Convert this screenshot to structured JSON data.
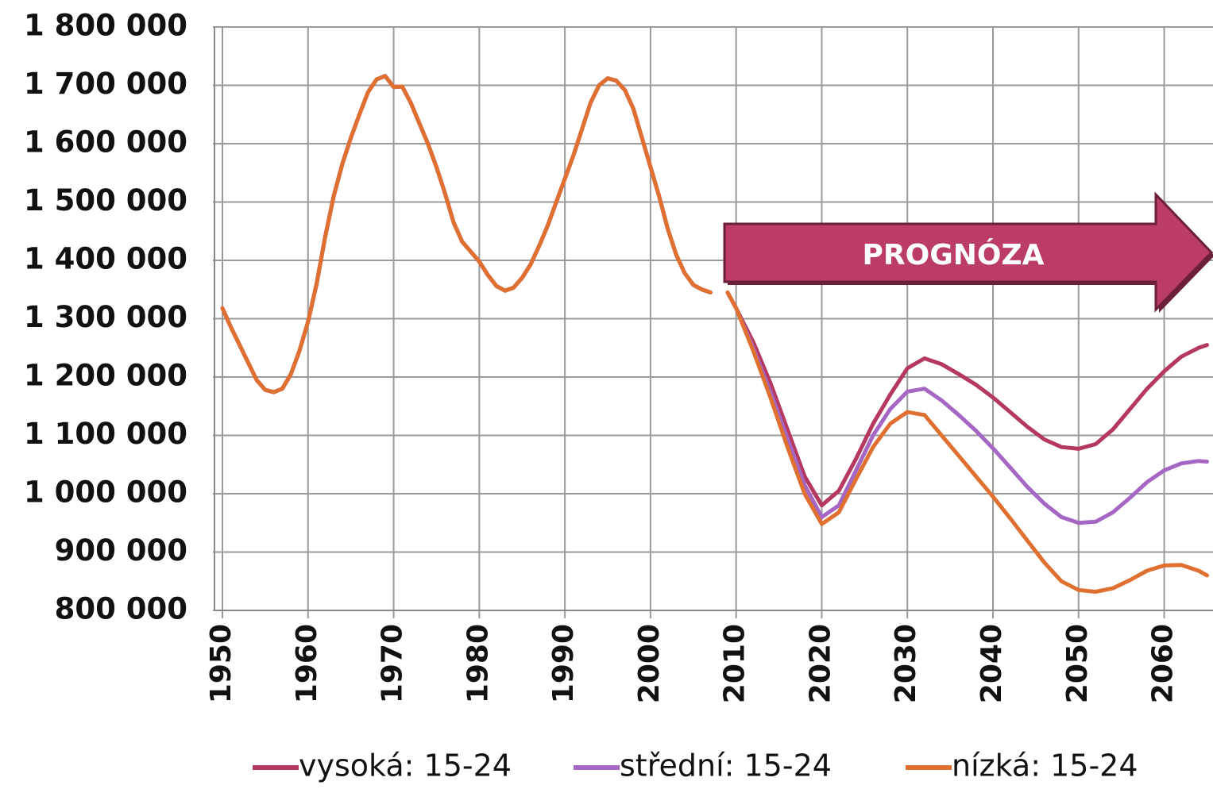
{
  "chart_data": {
    "type": "line",
    "annotation": "PROGNÓZA",
    "x": [
      1950,
      1951,
      1952,
      1953,
      1954,
      1955,
      1956,
      1957,
      1958,
      1959,
      1960,
      1961,
      1962,
      1963,
      1964,
      1965,
      1966,
      1967,
      1968,
      1969,
      1970,
      1971,
      1972,
      1973,
      1974,
      1975,
      1976,
      1977,
      1978,
      1979,
      1980,
      1981,
      1982,
      1983,
      1984,
      1985,
      1986,
      1987,
      1988,
      1989,
      1990,
      1991,
      1992,
      1993,
      1994,
      1995,
      1996,
      1997,
      1998,
      1999,
      2000,
      2001,
      2002,
      2003,
      2004,
      2005,
      2006,
      2007,
      2008,
      2009,
      2010,
      2012,
      2014,
      2016,
      2018,
      2020,
      2022,
      2024,
      2026,
      2028,
      2030,
      2032,
      2034,
      2036,
      2038,
      2040,
      2042,
      2044,
      2046,
      2048,
      2050,
      2052,
      2054,
      2056,
      2058,
      2060,
      2062,
      2064,
      2065
    ],
    "series": [
      {
        "name": "vysoká: 15-24",
        "color": "#b5385e",
        "values": [
          1318000,
          1285000,
          1255000,
          1225000,
          1195000,
          1178000,
          1174000,
          1180000,
          1205000,
          1245000,
          1295000,
          1360000,
          1440000,
          1510000,
          1565000,
          1610000,
          1650000,
          1688000,
          1710000,
          1716000,
          1697000,
          1698000,
          1670000,
          1635000,
          1600000,
          1560000,
          1515000,
          1465000,
          1432000,
          1415000,
          1398000,
          1375000,
          1356000,
          1348000,
          1353000,
          1370000,
          1393000,
          1425000,
          1460000,
          1500000,
          1540000,
          1580000,
          1625000,
          1670000,
          1700000,
          1712000,
          1708000,
          1692000,
          1660000,
          1610000,
          1560000,
          1510000,
          1455000,
          1410000,
          1378000,
          1358000,
          1350000,
          1345000,
          null,
          1345000,
          1318000,
          1260000,
          1190000,
          1110000,
          1030000,
          980000,
          1005000,
          1060000,
          1120000,
          1170000,
          1215000,
          1232000,
          1222000,
          1205000,
          1187000,
          1165000,
          1140000,
          1115000,
          1093000,
          1080000,
          1077000,
          1085000,
          1110000,
          1145000,
          1180000,
          1210000,
          1235000,
          1250000,
          1255000
        ]
      },
      {
        "name": "střední: 15-24",
        "color": "#a566c4",
        "values": [
          1318000,
          1285000,
          1255000,
          1225000,
          1195000,
          1178000,
          1174000,
          1180000,
          1205000,
          1245000,
          1295000,
          1360000,
          1440000,
          1510000,
          1565000,
          1610000,
          1650000,
          1688000,
          1710000,
          1716000,
          1697000,
          1698000,
          1670000,
          1635000,
          1600000,
          1560000,
          1515000,
          1465000,
          1432000,
          1415000,
          1398000,
          1375000,
          1356000,
          1348000,
          1353000,
          1370000,
          1393000,
          1425000,
          1460000,
          1500000,
          1540000,
          1580000,
          1625000,
          1670000,
          1700000,
          1712000,
          1708000,
          1692000,
          1660000,
          1610000,
          1560000,
          1510000,
          1455000,
          1410000,
          1378000,
          1358000,
          1350000,
          1345000,
          null,
          1345000,
          1318000,
          1250000,
          1175000,
          1095000,
          1015000,
          960000,
          980000,
          1040000,
          1100000,
          1145000,
          1175000,
          1180000,
          1160000,
          1135000,
          1108000,
          1078000,
          1045000,
          1012000,
          983000,
          960000,
          950000,
          952000,
          968000,
          993000,
          1020000,
          1040000,
          1052000,
          1056000,
          1055000
        ]
      },
      {
        "name": "nízká: 15-24",
        "color": "#e07030",
        "values": [
          1318000,
          1285000,
          1255000,
          1225000,
          1195000,
          1178000,
          1174000,
          1180000,
          1205000,
          1245000,
          1295000,
          1360000,
          1440000,
          1510000,
          1565000,
          1610000,
          1650000,
          1688000,
          1710000,
          1716000,
          1697000,
          1698000,
          1670000,
          1635000,
          1600000,
          1560000,
          1515000,
          1465000,
          1432000,
          1415000,
          1398000,
          1375000,
          1356000,
          1348000,
          1353000,
          1370000,
          1393000,
          1425000,
          1460000,
          1500000,
          1540000,
          1580000,
          1625000,
          1670000,
          1700000,
          1712000,
          1708000,
          1692000,
          1660000,
          1610000,
          1560000,
          1510000,
          1455000,
          1410000,
          1378000,
          1358000,
          1350000,
          1345000,
          null,
          1345000,
          1318000,
          1245000,
          1165000,
          1080000,
          1000000,
          948000,
          968000,
          1025000,
          1080000,
          1120000,
          1140000,
          1135000,
          1100000,
          1065000,
          1030000,
          995000,
          958000,
          920000,
          882000,
          850000,
          835000,
          832000,
          838000,
          852000,
          868000,
          877000,
          878000,
          868000,
          860000
        ]
      }
    ],
    "xlim": [
      1950,
      2065.7
    ],
    "xticks": [
      1950,
      1960,
      1970,
      1980,
      1990,
      2000,
      2010,
      2020,
      2030,
      2040,
      2050,
      2060
    ],
    "ylim": [
      800000,
      1800000
    ],
    "yticks": [
      {
        "value": 800000,
        "label": "800 000"
      },
      {
        "value": 900000,
        "label": "900 000"
      },
      {
        "value": 1000000,
        "label": "1 000 000"
      },
      {
        "value": 1100000,
        "label": "1 100 000"
      },
      {
        "value": 1200000,
        "label": "1 200 000"
      },
      {
        "value": 1300000,
        "label": "1 300 000"
      },
      {
        "value": 1400000,
        "label": "1 400 000"
      },
      {
        "value": 1500000,
        "label": "1 500 000"
      },
      {
        "value": 1600000,
        "label": "1 600 000"
      },
      {
        "value": 1700000,
        "label": "1 700 000"
      },
      {
        "value": 1800000,
        "label": "1 800 000"
      }
    ],
    "grid": true,
    "legend": "bottom"
  }
}
